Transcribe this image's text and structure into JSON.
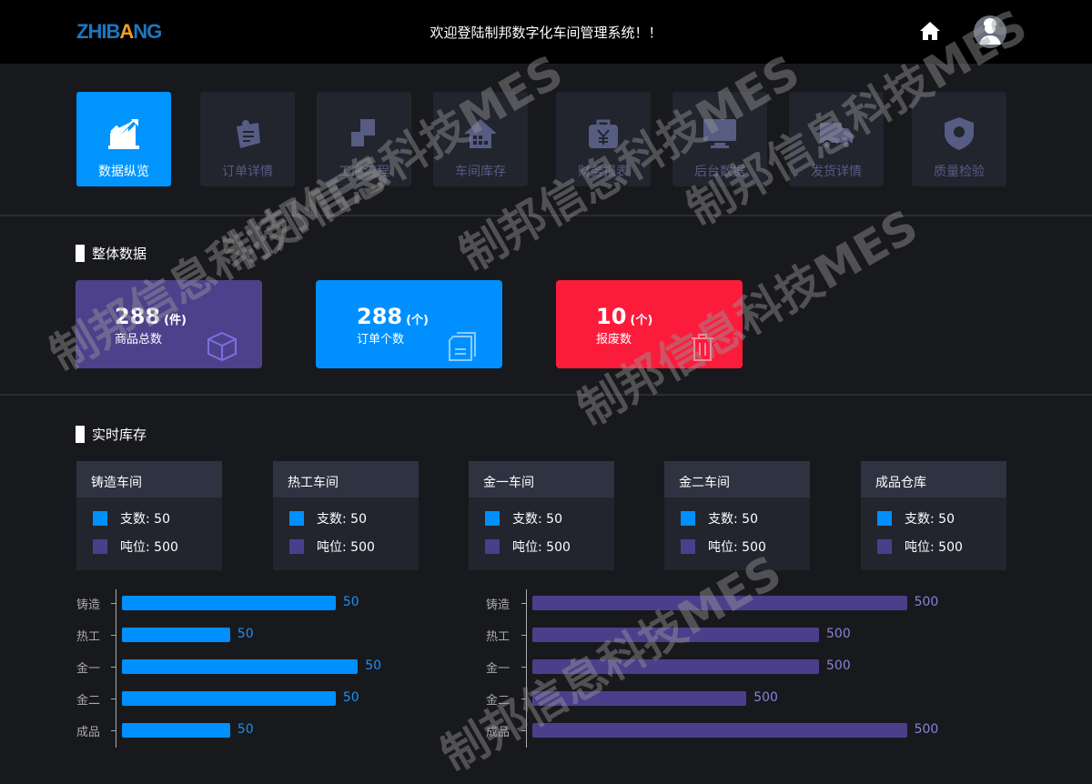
{
  "header": {
    "logo": "ZHIBANG",
    "welcome": "欢迎登陆制邦数字化车间管理系统！！"
  },
  "nav": [
    {
      "label": "数据纵览",
      "icon": "chart-up-icon",
      "active": true
    },
    {
      "label": "订单详情",
      "icon": "note-pin-icon"
    },
    {
      "label": "工序流程",
      "icon": "process-icon"
    },
    {
      "label": "车间库存",
      "icon": "warehouse-icon"
    },
    {
      "label": "财务报表",
      "icon": "yen-bag-icon"
    },
    {
      "label": "后台数据",
      "icon": "monitor-icon"
    },
    {
      "label": "发货详情",
      "icon": "truck-icon"
    },
    {
      "label": "质量检验",
      "icon": "shield-icon"
    }
  ],
  "overall": {
    "title": "整体数据",
    "cards": [
      {
        "value": "288",
        "unit": "(件)",
        "label": "商品总数",
        "color": "#4d418c",
        "icon": "cube-icon"
      },
      {
        "value": "288",
        "unit": "(个)",
        "label": "订单个数",
        "color": "#008ffe",
        "icon": "document-icon"
      },
      {
        "value": "10",
        "unit": "(个)",
        "label": "报废数",
        "color": "#fb1c3c",
        "icon": "trash-icon"
      }
    ]
  },
  "inventory": {
    "title": "实时库存",
    "legend_colors": [
      "#008ffe",
      "#4b3f8c"
    ],
    "workshops": [
      {
        "name": "铸造车间",
        "count": "支数: 50",
        "tons": "吨位: 500"
      },
      {
        "name": "热工车间",
        "count": "支数: 50",
        "tons": "吨位: 500"
      },
      {
        "name": "金一车间",
        "count": "支数: 50",
        "tons": "吨位: 500"
      },
      {
        "name": "金二车间",
        "count": "支数: 50",
        "tons": "吨位: 500"
      },
      {
        "name": "成品仓库",
        "count": "支数: 50",
        "tons": "吨位: 500"
      }
    ]
  },
  "chart_data": [
    {
      "type": "bar",
      "orientation": "horizontal",
      "categories": [
        "铸造",
        "热工",
        "金一",
        "金二",
        "成品"
      ],
      "labels": [
        "50",
        "50",
        "50",
        "50",
        "50"
      ],
      "bar_fill_pct": [
        87,
        44,
        96,
        87,
        44
      ],
      "color": "#008ffe"
    },
    {
      "type": "bar",
      "orientation": "horizontal",
      "categories": [
        "铸造",
        "热工",
        "金一",
        "金二",
        "成品"
      ],
      "labels": [
        "500",
        "500",
        "500",
        "500",
        "500"
      ],
      "bar_fill_pct": [
        98,
        75,
        75,
        56,
        98
      ],
      "color": "#4b3f8c"
    }
  ],
  "watermark": "制邦信息科技MES"
}
